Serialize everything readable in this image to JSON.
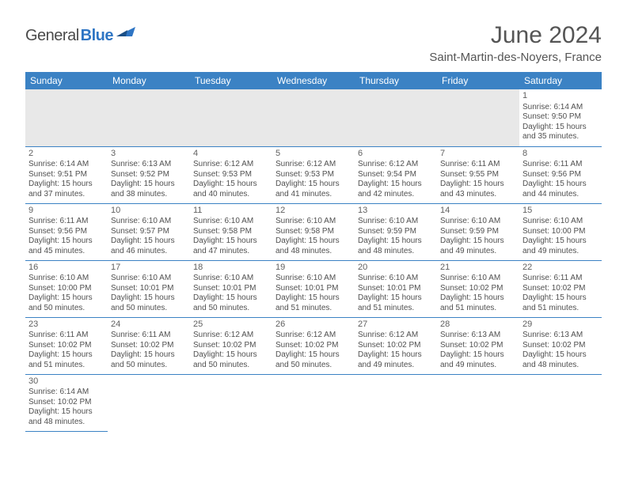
{
  "logo": {
    "general": "General",
    "blue": "Blue"
  },
  "title": "June 2024",
  "location": "Saint-Martin-des-Noyers, France",
  "colors": {
    "header_bg": "#3b82c4",
    "header_text": "#ffffff",
    "blank_bg": "#e8e8e8",
    "border": "#3b82c4",
    "text": "#505050",
    "logo_gray": "#4a4a4a",
    "logo_blue": "#2e75c4"
  },
  "day_headers": [
    "Sunday",
    "Monday",
    "Tuesday",
    "Wednesday",
    "Thursday",
    "Friday",
    "Saturday"
  ],
  "weeks": [
    [
      {
        "n": "",
        "sr": "",
        "ss": "",
        "dl": ""
      },
      {
        "n": "",
        "sr": "",
        "ss": "",
        "dl": ""
      },
      {
        "n": "",
        "sr": "",
        "ss": "",
        "dl": ""
      },
      {
        "n": "",
        "sr": "",
        "ss": "",
        "dl": ""
      },
      {
        "n": "",
        "sr": "",
        "ss": "",
        "dl": ""
      },
      {
        "n": "",
        "sr": "",
        "ss": "",
        "dl": ""
      },
      {
        "n": "1",
        "sr": "6:14 AM",
        "ss": "9:50 PM",
        "dl": "15 hours and 35 minutes."
      }
    ],
    [
      {
        "n": "2",
        "sr": "6:14 AM",
        "ss": "9:51 PM",
        "dl": "15 hours and 37 minutes."
      },
      {
        "n": "3",
        "sr": "6:13 AM",
        "ss": "9:52 PM",
        "dl": "15 hours and 38 minutes."
      },
      {
        "n": "4",
        "sr": "6:12 AM",
        "ss": "9:53 PM",
        "dl": "15 hours and 40 minutes."
      },
      {
        "n": "5",
        "sr": "6:12 AM",
        "ss": "9:53 PM",
        "dl": "15 hours and 41 minutes."
      },
      {
        "n": "6",
        "sr": "6:12 AM",
        "ss": "9:54 PM",
        "dl": "15 hours and 42 minutes."
      },
      {
        "n": "7",
        "sr": "6:11 AM",
        "ss": "9:55 PM",
        "dl": "15 hours and 43 minutes."
      },
      {
        "n": "8",
        "sr": "6:11 AM",
        "ss": "9:56 PM",
        "dl": "15 hours and 44 minutes."
      }
    ],
    [
      {
        "n": "9",
        "sr": "6:11 AM",
        "ss": "9:56 PM",
        "dl": "15 hours and 45 minutes."
      },
      {
        "n": "10",
        "sr": "6:10 AM",
        "ss": "9:57 PM",
        "dl": "15 hours and 46 minutes."
      },
      {
        "n": "11",
        "sr": "6:10 AM",
        "ss": "9:58 PM",
        "dl": "15 hours and 47 minutes."
      },
      {
        "n": "12",
        "sr": "6:10 AM",
        "ss": "9:58 PM",
        "dl": "15 hours and 48 minutes."
      },
      {
        "n": "13",
        "sr": "6:10 AM",
        "ss": "9:59 PM",
        "dl": "15 hours and 48 minutes."
      },
      {
        "n": "14",
        "sr": "6:10 AM",
        "ss": "9:59 PM",
        "dl": "15 hours and 49 minutes."
      },
      {
        "n": "15",
        "sr": "6:10 AM",
        "ss": "10:00 PM",
        "dl": "15 hours and 49 minutes."
      }
    ],
    [
      {
        "n": "16",
        "sr": "6:10 AM",
        "ss": "10:00 PM",
        "dl": "15 hours and 50 minutes."
      },
      {
        "n": "17",
        "sr": "6:10 AM",
        "ss": "10:01 PM",
        "dl": "15 hours and 50 minutes."
      },
      {
        "n": "18",
        "sr": "6:10 AM",
        "ss": "10:01 PM",
        "dl": "15 hours and 50 minutes."
      },
      {
        "n": "19",
        "sr": "6:10 AM",
        "ss": "10:01 PM",
        "dl": "15 hours and 51 minutes."
      },
      {
        "n": "20",
        "sr": "6:10 AM",
        "ss": "10:01 PM",
        "dl": "15 hours and 51 minutes."
      },
      {
        "n": "21",
        "sr": "6:10 AM",
        "ss": "10:02 PM",
        "dl": "15 hours and 51 minutes."
      },
      {
        "n": "22",
        "sr": "6:11 AM",
        "ss": "10:02 PM",
        "dl": "15 hours and 51 minutes."
      }
    ],
    [
      {
        "n": "23",
        "sr": "6:11 AM",
        "ss": "10:02 PM",
        "dl": "15 hours and 51 minutes."
      },
      {
        "n": "24",
        "sr": "6:11 AM",
        "ss": "10:02 PM",
        "dl": "15 hours and 50 minutes."
      },
      {
        "n": "25",
        "sr": "6:12 AM",
        "ss": "10:02 PM",
        "dl": "15 hours and 50 minutes."
      },
      {
        "n": "26",
        "sr": "6:12 AM",
        "ss": "10:02 PM",
        "dl": "15 hours and 50 minutes."
      },
      {
        "n": "27",
        "sr": "6:12 AM",
        "ss": "10:02 PM",
        "dl": "15 hours and 49 minutes."
      },
      {
        "n": "28",
        "sr": "6:13 AM",
        "ss": "10:02 PM",
        "dl": "15 hours and 49 minutes."
      },
      {
        "n": "29",
        "sr": "6:13 AM",
        "ss": "10:02 PM",
        "dl": "15 hours and 48 minutes."
      }
    ],
    [
      {
        "n": "30",
        "sr": "6:14 AM",
        "ss": "10:02 PM",
        "dl": "15 hours and 48 minutes."
      },
      {
        "n": "",
        "sr": "",
        "ss": "",
        "dl": ""
      },
      {
        "n": "",
        "sr": "",
        "ss": "",
        "dl": ""
      },
      {
        "n": "",
        "sr": "",
        "ss": "",
        "dl": ""
      },
      {
        "n": "",
        "sr": "",
        "ss": "",
        "dl": ""
      },
      {
        "n": "",
        "sr": "",
        "ss": "",
        "dl": ""
      },
      {
        "n": "",
        "sr": "",
        "ss": "",
        "dl": ""
      }
    ]
  ]
}
